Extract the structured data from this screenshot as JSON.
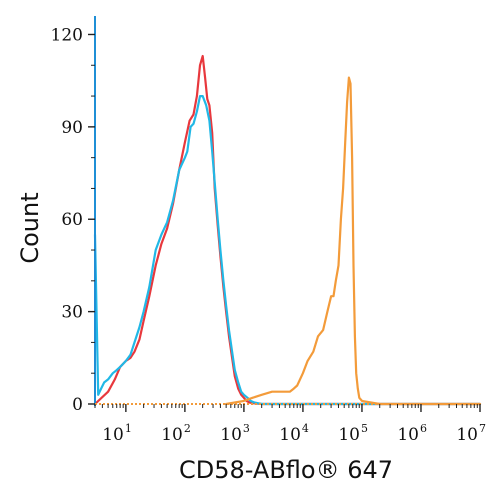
{
  "chart_data": {
    "type": "line",
    "subtype": "flow-cytometry-histogram",
    "xlabel": "CD58-ABflo® 647",
    "ylabel": "Count",
    "x_scale": "log",
    "xlim": [
      3,
      10000000
    ],
    "ylim": [
      0,
      126
    ],
    "grid": false,
    "legend": "none",
    "y_ticks": [
      0,
      30,
      60,
      90,
      120
    ],
    "x_ticks": [
      {
        "value": 10,
        "base": "10",
        "exp": "1"
      },
      {
        "value": 100,
        "base": "10",
        "exp": "2"
      },
      {
        "value": 1000,
        "base": "10",
        "exp": "3"
      },
      {
        "value": 10000,
        "base": "10",
        "exp": "4"
      },
      {
        "value": 100000,
        "base": "10",
        "exp": "5"
      },
      {
        "value": 1000000,
        "base": "10",
        "exp": "6"
      },
      {
        "value": 10000000,
        "base": "10",
        "exp": "7"
      }
    ],
    "series": [
      {
        "color": "#e8383d",
        "x": [
          3,
          5,
          6.5,
          8,
          10,
          12,
          14,
          17,
          20,
          25,
          32,
          40,
          50,
          63,
          80,
          100,
          120,
          140,
          160,
          180,
          200,
          220,
          240,
          260,
          290,
          320,
          360,
          400,
          450,
          500,
          560,
          630,
          700,
          800,
          900,
          1000,
          1100,
          1250,
          1400,
          2000,
          10000000
        ],
        "y": [
          0,
          4,
          8,
          12,
          14,
          15,
          17,
          21,
          27,
          35,
          45,
          52,
          57,
          65,
          76,
          85,
          92,
          94,
          100,
          110,
          113,
          106,
          99,
          97,
          88,
          70,
          58,
          48,
          38,
          30,
          22,
          15,
          9,
          5,
          3,
          2,
          1,
          0.5,
          0.3,
          0,
          0
        ]
      },
      {
        "color": "#21b8e6",
        "x": [
          3,
          3.4,
          3.8,
          4.3,
          5,
          6,
          7,
          8,
          10,
          12,
          14,
          17,
          20,
          25,
          32,
          40,
          50,
          63,
          80,
          100,
          110,
          125,
          140,
          160,
          180,
          200,
          230,
          260,
          290,
          320,
          360,
          400,
          450,
          500,
          560,
          630,
          700,
          800,
          900,
          1000,
          1150,
          1300,
          1500,
          2000,
          10000000
        ],
        "y": [
          55,
          3,
          5,
          7,
          8,
          10,
          11,
          12,
          14,
          16,
          20,
          25,
          30,
          38,
          50,
          55,
          59,
          66,
          76,
          80,
          82,
          90,
          91,
          95,
          100,
          100,
          97,
          92,
          82,
          72,
          60,
          50,
          40,
          32,
          24,
          17,
          11,
          7,
          4,
          3,
          2,
          1,
          0.5,
          0,
          0
        ]
      },
      {
        "color": "#f39b3a",
        "x": [
          500,
          700,
          1000,
          1400,
          2000,
          3000,
          4000,
          5000,
          6000,
          7000,
          8000,
          10000,
          12000,
          15000,
          18000,
          22000,
          26000,
          30000,
          33000,
          36000,
          40000,
          44000,
          48000,
          52000,
          56000,
          60000,
          64000,
          68000,
          72000,
          76000,
          80000,
          85000,
          90000,
          100000,
          200000,
          10000000
        ],
        "y": [
          0,
          0.5,
          1,
          2,
          3,
          4,
          4,
          4,
          4,
          5,
          6,
          10,
          14,
          17,
          22,
          24,
          30,
          35,
          35,
          40,
          45,
          60,
          70,
          85,
          98,
          106,
          104,
          80,
          45,
          22,
          10,
          5,
          2,
          1,
          0,
          0
        ]
      }
    ]
  }
}
